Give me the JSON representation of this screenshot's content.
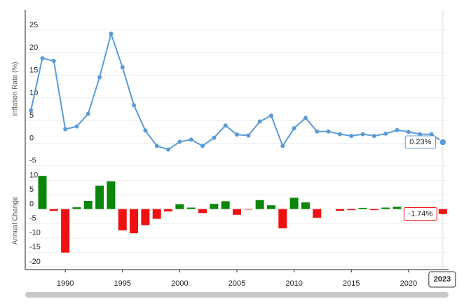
{
  "chart_data": [
    {
      "type": "line",
      "ylabel": "Inflation Rate (%)",
      "color": "#5b9bd5",
      "x": [
        1987,
        1988,
        1989,
        1990,
        1991,
        1992,
        1993,
        1994,
        1995,
        1996,
        1997,
        1998,
        1999,
        2000,
        2001,
        2002,
        2003,
        2004,
        2005,
        2006,
        2007,
        2008,
        2009,
        2010,
        2011,
        2012,
        2013,
        2014,
        2015,
        2016,
        2017,
        2018,
        2019,
        2020,
        2021,
        2022,
        2023
      ],
      "values": [
        7.3,
        18.8,
        18.2,
        3.1,
        3.7,
        6.5,
        14.6,
        24.2,
        16.8,
        8.4,
        2.8,
        -0.6,
        -1.4,
        0.3,
        0.8,
        -0.6,
        1.2,
        3.9,
        1.9,
        1.7,
        4.8,
        6.1,
        -0.6,
        3.3,
        5.6,
        2.6,
        2.6,
        2.0,
        1.6,
        2.0,
        1.6,
        2.1,
        2.9,
        2.5,
        2.0,
        1.97,
        0.23
      ],
      "value_labels": [
        null,
        null,
        null,
        null,
        null,
        null,
        null,
        null,
        null,
        null,
        null,
        null,
        null,
        null,
        null,
        null,
        null,
        null,
        null,
        null,
        null,
        null,
        null,
        null,
        null,
        null,
        null,
        null,
        null,
        null,
        null,
        null,
        null,
        null,
        null,
        null,
        "0.23%"
      ],
      "xlim": [
        1986.5,
        2023.5
      ],
      "ylim": [
        -5.5,
        29.5
      ],
      "yticks": [
        25,
        20,
        15,
        10,
        5,
        0,
        -5
      ],
      "grid": true
    },
    {
      "type": "bar",
      "ylabel": "Annual Change",
      "pos_color": "#0a870a",
      "neg_color": "#ee1111",
      "x": [
        1987,
        1988,
        1989,
        1990,
        1991,
        1992,
        1993,
        1994,
        1995,
        1996,
        1997,
        1998,
        1999,
        2000,
        2001,
        2002,
        2003,
        2004,
        2005,
        2006,
        2007,
        2008,
        2009,
        2010,
        2011,
        2012,
        2013,
        2014,
        2015,
        2016,
        2017,
        2018,
        2019,
        2020,
        2021,
        2022,
        2023
      ],
      "values": [
        null,
        11.5,
        -0.6,
        -15.1,
        0.6,
        2.8,
        8.1,
        9.6,
        -7.4,
        -8.4,
        -5.6,
        -3.4,
        -0.8,
        1.7,
        0.5,
        -1.4,
        1.8,
        2.7,
        -2.0,
        -0.2,
        3.1,
        1.3,
        -6.7,
        3.9,
        2.3,
        -3.0,
        0,
        -0.6,
        -0.4,
        0.4,
        -0.4,
        0.5,
        0.8,
        -0.4,
        -0.5,
        -0.03,
        -1.74
      ],
      "value_labels": [
        null,
        null,
        null,
        null,
        null,
        null,
        null,
        null,
        null,
        null,
        null,
        null,
        null,
        null,
        null,
        null,
        null,
        null,
        null,
        null,
        null,
        null,
        null,
        null,
        null,
        null,
        null,
        null,
        null,
        null,
        null,
        null,
        null,
        null,
        null,
        null,
        "-1.74%"
      ],
      "xlim": [
        1986.5,
        2023.5
      ],
      "ylim": [
        -21,
        13
      ],
      "yticks": [
        10,
        5,
        0,
        -5,
        -10,
        -15,
        -20
      ],
      "xticks": [
        1990,
        1995,
        2000,
        2005,
        2010,
        2015,
        2020
      ],
      "grid": true
    }
  ]
}
